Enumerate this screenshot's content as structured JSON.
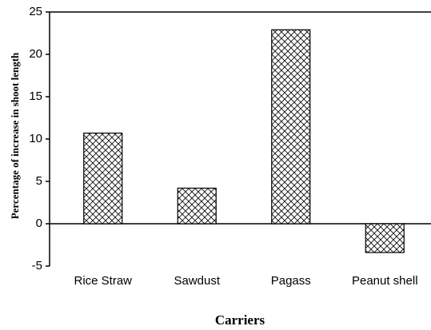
{
  "chart_data": {
    "type": "bar",
    "categories": [
      "Rice Straw",
      "Sawdust",
      "Pagass",
      "Peanut shell"
    ],
    "values": [
      10.7,
      4.2,
      22.9,
      -3.4
    ],
    "ylim": [
      -5,
      25
    ],
    "yticks": [
      -5,
      0,
      5,
      10,
      15,
      20,
      25
    ],
    "y_label": "Percentage of increase in shoot length",
    "x_label": "Carriers",
    "color": "#000000"
  }
}
